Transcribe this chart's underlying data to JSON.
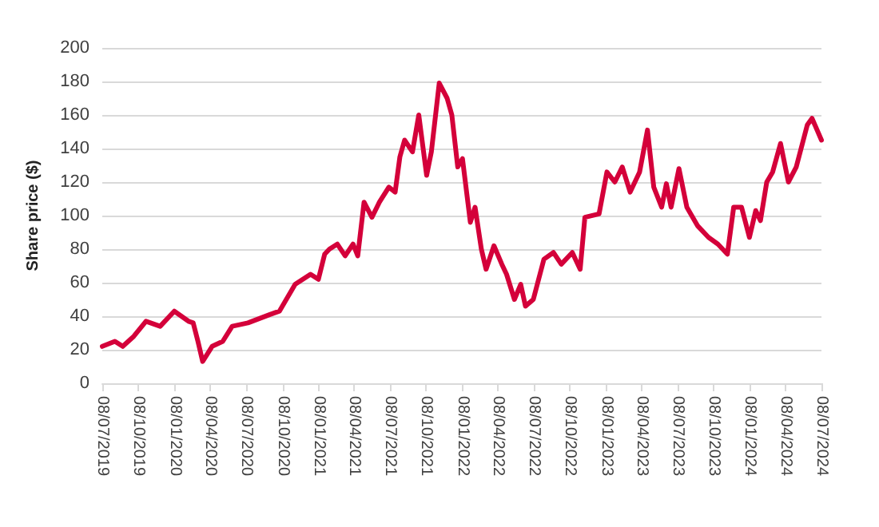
{
  "chart_data": {
    "type": "line",
    "ylabel": "Share price ($)",
    "ylim": [
      0,
      200
    ],
    "yticks": [
      0,
      20,
      40,
      60,
      80,
      100,
      120,
      140,
      160,
      180,
      200
    ],
    "grid": "y",
    "marker": "none",
    "line_style": "solid",
    "xlim": [
      "2019-07-08",
      "2024-07-08"
    ],
    "xticks": [
      {
        "value": "2019-07-08",
        "label": "08/07/2019"
      },
      {
        "value": "2019-10-08",
        "label": "08/10/2019"
      },
      {
        "value": "2020-01-08",
        "label": "08/01/2020"
      },
      {
        "value": "2020-04-08",
        "label": "08/04/2020"
      },
      {
        "value": "2020-07-08",
        "label": "08/07/2020"
      },
      {
        "value": "2020-10-08",
        "label": "08/10/2020"
      },
      {
        "value": "2021-01-08",
        "label": "08/01/2021"
      },
      {
        "value": "2021-04-08",
        "label": "08/04/2021"
      },
      {
        "value": "2021-07-08",
        "label": "08/07/2021"
      },
      {
        "value": "2021-10-08",
        "label": "08/10/2021"
      },
      {
        "value": "2022-01-08",
        "label": "08/01/2022"
      },
      {
        "value": "2022-04-08",
        "label": "08/04/2022"
      },
      {
        "value": "2022-07-08",
        "label": "08/07/2022"
      },
      {
        "value": "2022-10-08",
        "label": "08/10/2022"
      },
      {
        "value": "2023-01-08",
        "label": "08/01/2023"
      },
      {
        "value": "2023-04-08",
        "label": "08/04/2023"
      },
      {
        "value": "2023-07-08",
        "label": "08/07/2023"
      },
      {
        "value": "2023-10-08",
        "label": "08/10/2023"
      },
      {
        "value": "2024-01-08",
        "label": "08/01/2024"
      },
      {
        "value": "2024-04-08",
        "label": "08/04/2024"
      },
      {
        "value": "2024-07-08",
        "label": "08/07/2024"
      }
    ],
    "x": [
      "2019-07-08",
      "2019-08-09",
      "2019-08-29",
      "2019-09-26",
      "2019-10-27",
      "2019-12-02",
      "2020-01-07",
      "2020-02-12",
      "2020-02-24",
      "2020-03-07",
      "2020-03-19",
      "2020-04-12",
      "2020-05-09",
      "2020-06-02",
      "2020-07-12",
      "2020-09-06",
      "2020-09-30",
      "2020-11-09",
      "2020-12-18",
      "2021-01-07",
      "2021-01-23",
      "2021-02-04",
      "2021-02-24",
      "2021-03-16",
      "2021-04-05",
      "2021-04-17",
      "2021-05-03",
      "2021-05-23",
      "2021-06-11",
      "2021-07-05",
      "2021-07-21",
      "2021-08-02",
      "2021-08-14",
      "2021-09-03",
      "2021-09-19",
      "2021-10-09",
      "2021-10-21",
      "2021-11-10",
      "2021-11-30",
      "2021-12-12",
      "2021-12-27",
      "2022-01-08",
      "2022-01-28",
      "2022-02-09",
      "2022-02-25",
      "2022-03-09",
      "2022-03-29",
      "2022-04-18",
      "2022-04-30",
      "2022-05-20",
      "2022-06-05",
      "2022-06-17",
      "2022-07-07",
      "2022-08-03",
      "2022-08-27",
      "2022-09-16",
      "2022-10-14",
      "2022-11-03",
      "2022-11-15",
      "2022-12-21",
      "2023-01-10",
      "2023-01-30",
      "2023-02-18",
      "2023-03-10",
      "2023-04-03",
      "2023-04-23",
      "2023-05-09",
      "2023-05-29",
      "2023-06-10",
      "2023-06-22",
      "2023-07-12",
      "2023-08-01",
      "2023-08-28",
      "2023-09-25",
      "2023-10-19",
      "2023-11-12",
      "2023-11-28",
      "2023-12-18",
      "2024-01-07",
      "2024-01-23",
      "2024-02-04",
      "2024-02-20",
      "2024-03-06",
      "2024-03-26",
      "2024-04-15",
      "2024-05-05",
      "2024-06-02",
      "2024-06-14",
      "2024-07-08"
    ],
    "series": [
      {
        "color": "#d4003a",
        "values": [
          22,
          25,
          22,
          28,
          37,
          34,
          43,
          37,
          36,
          25,
          13,
          22,
          25,
          34,
          36,
          41,
          43,
          59,
          65,
          62,
          77,
          80,
          83,
          76,
          83,
          76,
          108,
          99,
          108,
          117,
          114,
          135,
          145,
          138,
          160,
          124,
          138,
          179,
          170,
          160,
          129,
          134,
          96,
          105,
          80,
          68,
          82,
          71,
          65,
          50,
          59,
          46,
          50,
          74,
          78,
          71,
          78,
          68,
          99,
          101,
          126,
          120,
          129,
          114,
          126,
          151,
          117,
          105,
          119,
          105,
          128,
          105,
          94,
          87,
          83,
          77,
          105,
          105,
          87,
          103,
          97,
          120,
          126,
          143,
          120,
          129,
          154,
          158,
          145
        ]
      }
    ]
  }
}
